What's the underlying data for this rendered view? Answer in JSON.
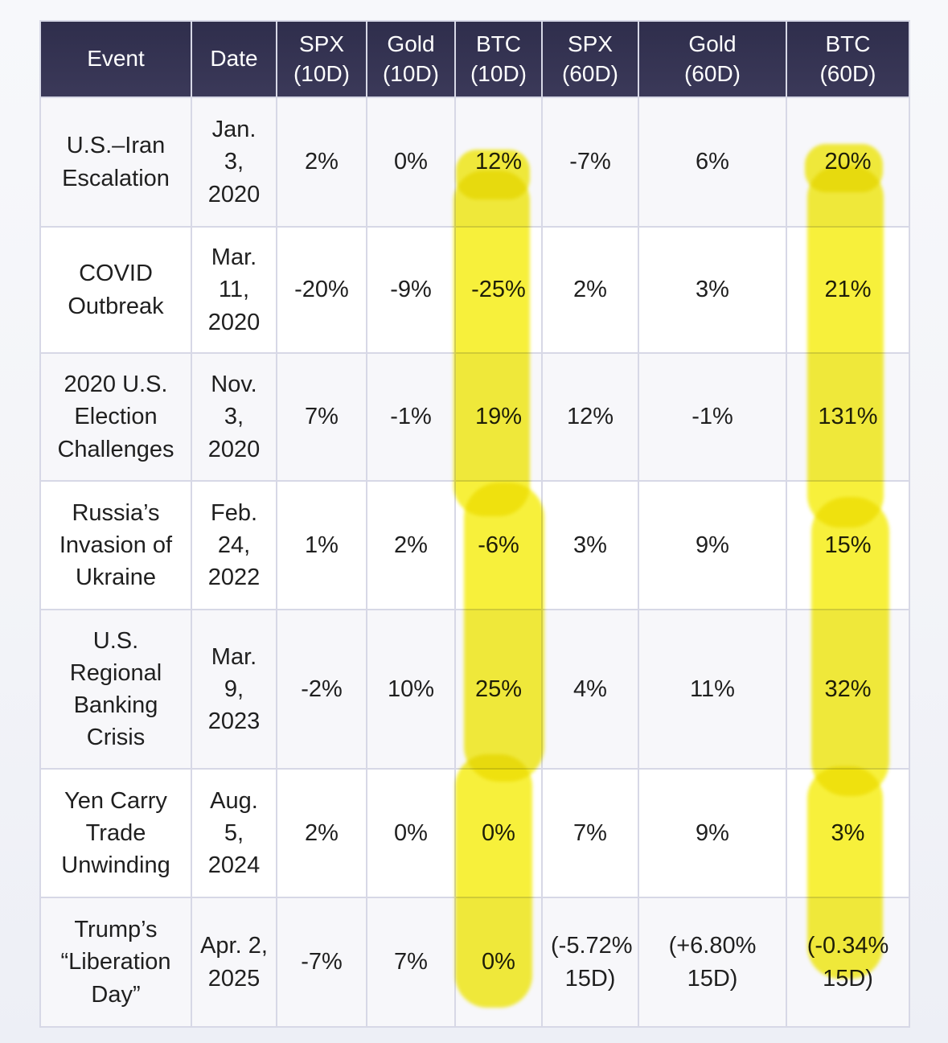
{
  "colors": {
    "page_bg": "#f3f4f8",
    "header_bg_top": "#2f2e4c",
    "header_bg_bottom": "#3b3959",
    "header_text": "#ffffff",
    "row_bg": "#ffffff",
    "row_alt_bg": "#f7f7fa",
    "border": "#d7d8e6",
    "text": "#1f1f1f",
    "highlight": "#f6ee20"
  },
  "highlights": {
    "tool": "yellow-marker",
    "marked_columns": [
      "BTC (10D)",
      "BTC (60D)"
    ]
  },
  "table": {
    "columns": [
      {
        "id": "event",
        "label": "Event"
      },
      {
        "id": "date",
        "label": "Date"
      },
      {
        "id": "spx-10d",
        "label": "SPX\n(10D)"
      },
      {
        "id": "gold-10d",
        "label": "Gold\n(10D)"
      },
      {
        "id": "btc-10d",
        "label": "BTC\n(10D)"
      },
      {
        "id": "spx-60d",
        "label": "SPX\n(60D)"
      },
      {
        "id": "gold-60d",
        "label": "Gold\n(60D)"
      },
      {
        "id": "btc-60d",
        "label": "BTC\n(60D)"
      }
    ],
    "rows": [
      {
        "cells": [
          "U.S.–Iran Escalation",
          "Jan. 3, 2020",
          "2%",
          "0%",
          "12%",
          "-7%",
          "6%",
          "20%"
        ]
      },
      {
        "cells": [
          "COVID Outbreak",
          "Mar. 11, 2020",
          "-20%",
          "-9%",
          "-25%",
          "2%",
          "3%",
          "21%"
        ]
      },
      {
        "cells": [
          "2020 U.S. Election Challenges",
          "Nov. 3, 2020",
          "7%",
          "-1%",
          "19%",
          "12%",
          "-1%",
          "131%"
        ]
      },
      {
        "cells": [
          "Russia’s Invasion of Ukraine",
          "Feb. 24, 2022",
          "1%",
          "2%",
          "-6%",
          "3%",
          "9%",
          "15%"
        ]
      },
      {
        "cells": [
          "U.S. Regional Banking Crisis",
          "Mar. 9, 2023",
          "-2%",
          "10%",
          "25%",
          "4%",
          "11%",
          "32%"
        ]
      },
      {
        "cells": [
          "Yen Carry Trade Unwinding",
          "Aug. 5, 2024",
          "2%",
          "0%",
          "0%",
          "7%",
          "9%",
          "3%"
        ]
      },
      {
        "cells": [
          "Trump’s “Liberation Day”",
          "Apr. 2, 2025",
          "-7%",
          "7%",
          "0%",
          "(-5.72% 15D)",
          "(+6.80% 15D)",
          "(-0.34% 15D)"
        ]
      }
    ]
  }
}
